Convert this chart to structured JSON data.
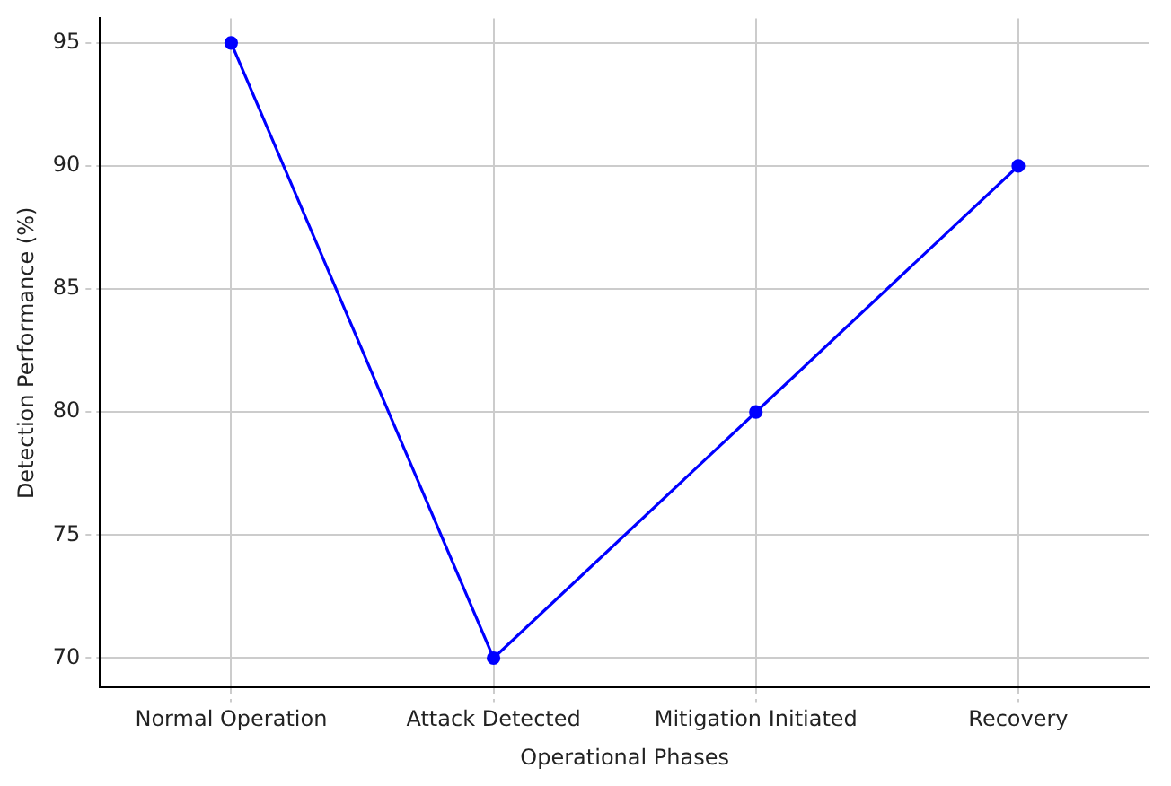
{
  "chart_data": {
    "type": "line",
    "xlabel": "Operational Phases",
    "ylabel": "Detection Performance (%)",
    "categories": [
      "Normal Operation",
      "Attack Detected",
      "Mitigation Initiated",
      "Recovery"
    ],
    "series": [
      {
        "color": "#0000ff",
        "values": [
          95,
          70,
          80,
          90
        ]
      }
    ],
    "ylim": [
      68.8,
      96
    ],
    "yticks": [
      70,
      75,
      80,
      85,
      90,
      95
    ],
    "grid": true,
    "marker": "circle",
    "line_style": "solid"
  }
}
